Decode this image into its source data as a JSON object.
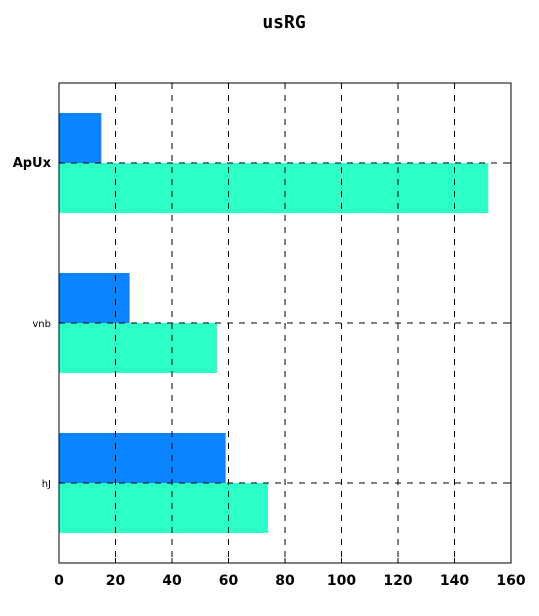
{
  "chart_data": {
    "type": "bar",
    "orientation": "horizontal",
    "title": "usRG",
    "xlabel": "",
    "ylabel": "",
    "categories": [
      "ApUx",
      "vnb",
      "hJ"
    ],
    "series": [
      {
        "values": [
          15,
          25,
          59
        ],
        "color": "#0a84ff"
      },
      {
        "values": [
          152,
          56,
          74
        ],
        "color": "#2dffc8"
      }
    ],
    "xlim": [
      0,
      160
    ],
    "xticks": [
      0,
      20,
      40,
      60,
      80,
      100,
      120,
      140,
      160
    ],
    "grid": true,
    "grid_style": "dashed"
  }
}
